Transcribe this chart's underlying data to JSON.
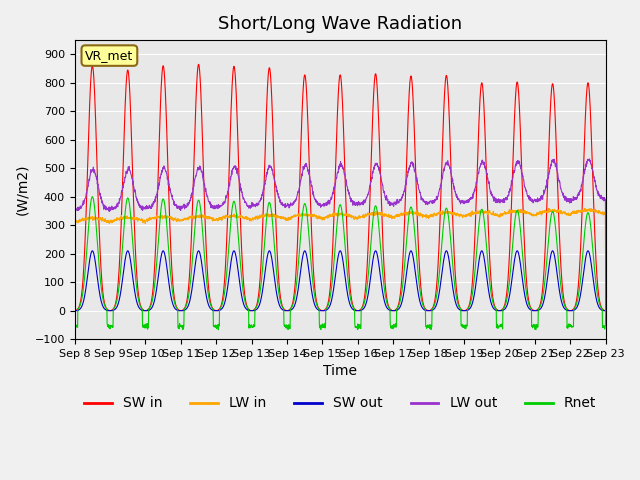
{
  "title": "Short/Long Wave Radiation",
  "ylabel": "(W/m2)",
  "xlabel": "Time",
  "station_label": "VR_met",
  "ylim": [
    -100,
    950
  ],
  "yticks": [
    -100,
    0,
    100,
    200,
    300,
    400,
    500,
    600,
    700,
    800,
    900
  ],
  "x_tick_labels": [
    "Sep 8",
    "Sep 9",
    "Sep 10",
    "Sep 11",
    "Sep 12",
    "Sep 13",
    "Sep 14",
    "Sep 15",
    "Sep 16",
    "Sep 17",
    "Sep 18",
    "Sep 19",
    "Sep 20",
    "Sep 21",
    "Sep 22",
    "Sep 23"
  ],
  "n_days": 15,
  "series_colors": {
    "SW_in": "#ff0000",
    "LW_in": "#ffa500",
    "SW_out": "#0000cc",
    "LW_out": "#9932cc",
    "Rnet": "#00cc00"
  },
  "background_color": "#e8e8e8",
  "fig_background": "#f0f0f0",
  "title_fontsize": 13,
  "label_fontsize": 10,
  "tick_fontsize": 8
}
